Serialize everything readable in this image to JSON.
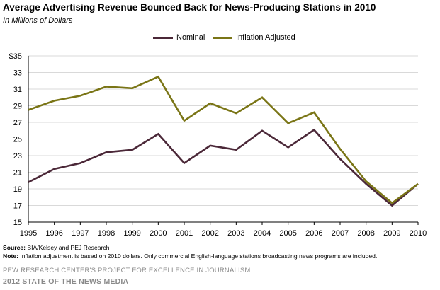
{
  "chart_data": {
    "type": "line",
    "title": "Average Advertising Revenue Bounced Back for News-Producing Stations in 2010",
    "subtitle": "In Millions of Dollars",
    "x": [
      "1995",
      "1996",
      "1997",
      "1998",
      "1999",
      "2000",
      "2001",
      "2002",
      "2003",
      "2004",
      "2005",
      "2006",
      "2007",
      "2008",
      "2009",
      "2010"
    ],
    "series": [
      {
        "name": "Nominal",
        "color": "#4b2838",
        "values": [
          19.8,
          21.4,
          22.1,
          23.4,
          23.7,
          25.6,
          22.1,
          24.2,
          23.7,
          26.0,
          24.0,
          26.1,
          22.6,
          19.6,
          17.0,
          19.6
        ]
      },
      {
        "name": "Inflation Adjusted",
        "color": "#7a7516",
        "values": [
          28.5,
          29.6,
          30.2,
          31.3,
          31.1,
          32.5,
          27.2,
          29.3,
          28.1,
          30.0,
          26.9,
          28.2,
          23.8,
          19.9,
          17.3,
          19.6
        ]
      }
    ],
    "ylim": [
      15,
      35
    ],
    "yticks": [
      15,
      17,
      19,
      21,
      23,
      25,
      27,
      29,
      31,
      33,
      35
    ],
    "ytick_labels": [
      "15",
      "17",
      "19",
      "21",
      "23",
      "25",
      "27",
      "29",
      "31",
      "33",
      "$35"
    ],
    "legend_position": "top-center",
    "grid": "horizontal"
  },
  "notes": {
    "source_label": "Source:",
    "source_text": "BIA/Kelsey and PEJ Research",
    "note_label": "Note:",
    "note_text": "Inflation adjustment is based on 2010 dollars.  Only commercial English-language  stations broadcasting news programs are included."
  },
  "credits": {
    "line1": "PEW RESEARCH CENTER'S PROJECT FOR EXCELLENCE IN JOURNALISM",
    "line2": "2012 STATE OF THE NEWS MEDIA"
  }
}
